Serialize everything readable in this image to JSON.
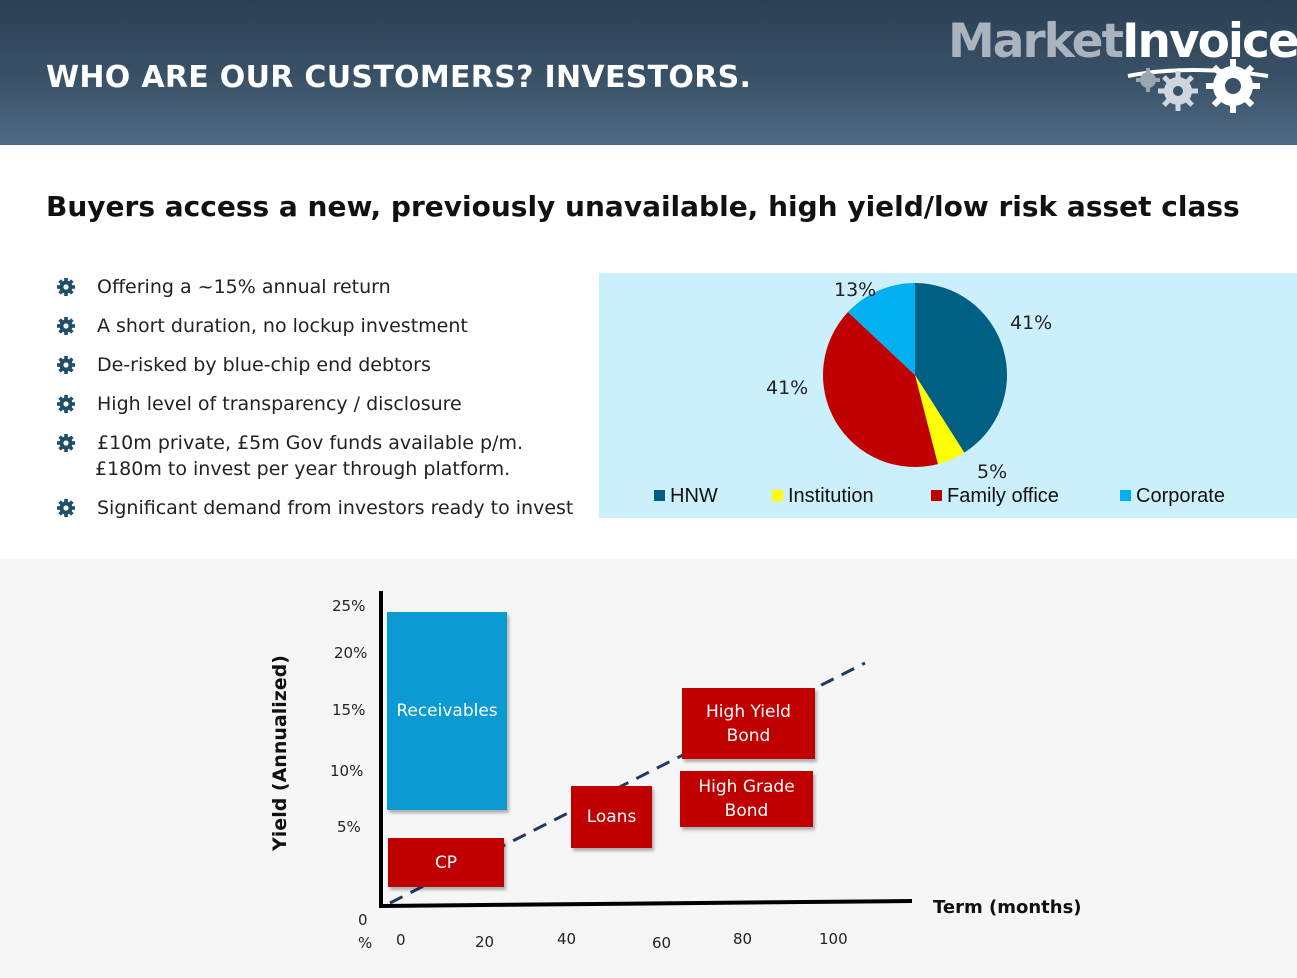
{
  "header": {
    "title": "WHO ARE OUR CUSTOMERS? INVESTORS.",
    "logo": {
      "market": "Market",
      "invoice": "Invoice",
      "icon": "gears-icon"
    }
  },
  "subtitle": "Buyers access a new, previously unavailable, high yield/low risk asset class",
  "bullets": [
    {
      "icon": "gear-icon",
      "text": "Offering a ~15% annual return"
    },
    {
      "icon": "gear-icon",
      "text": "A short duration, no lockup investment"
    },
    {
      "icon": "gear-icon",
      "text": "De-risked by blue-chip end debtors"
    },
    {
      "icon": "gear-icon",
      "text": "High level of transparency / disclosure"
    },
    {
      "icon": "gear-icon",
      "text": "£10m private, £5m Gov funds available p/m.",
      "text2": "£180m to invest per year through platform."
    },
    {
      "icon": "gear-icon",
      "text": "Significant demand from investors ready to invest"
    }
  ],
  "colors": {
    "hnw": "#006083",
    "institution": "#ffff00",
    "family_office": "#c00000",
    "corporate": "#00b0f0",
    "box_red": "#c00000",
    "box_blue": "#0b9ad2"
  },
  "chart_data": [
    {
      "type": "pie",
      "slices": [
        {
          "name": "HNW",
          "value": 41,
          "label": "41%",
          "color": "#006083"
        },
        {
          "name": "Institution",
          "value": 5,
          "label": "5%",
          "color": "#ffff00"
        },
        {
          "name": "Family office",
          "value": 41,
          "label": "41%",
          "color": "#c00000"
        },
        {
          "name": "Corporate",
          "value": 13,
          "label": "13%",
          "color": "#00b0f0"
        }
      ],
      "legend": [
        "HNW",
        "Institution",
        "Family office",
        "Corporate"
      ],
      "legend_position": "bottom"
    },
    {
      "type": "diagram",
      "xlabel": "Term (months)",
      "ylabel": "Yield (Annualized)",
      "x_ticks": [
        "0",
        "20",
        "40",
        "60",
        "80",
        "100"
      ],
      "y_ticks": [
        "0 %",
        "5%",
        "10%",
        "15%",
        "20%",
        "25%"
      ],
      "boxes": [
        {
          "label": "Receivables",
          "color": "blue"
        },
        {
          "label": "CP",
          "color": "red"
        },
        {
          "label": "Loans",
          "color": "red"
        },
        {
          "label": "High Grade Bond",
          "line1": "High Grade",
          "line2": "Bond",
          "color": "red"
        },
        {
          "label": "High Yield Bond",
          "line1": "High Yield",
          "line2": "Bond",
          "color": "red"
        }
      ],
      "trend": "dashed line rising with term"
    }
  ]
}
